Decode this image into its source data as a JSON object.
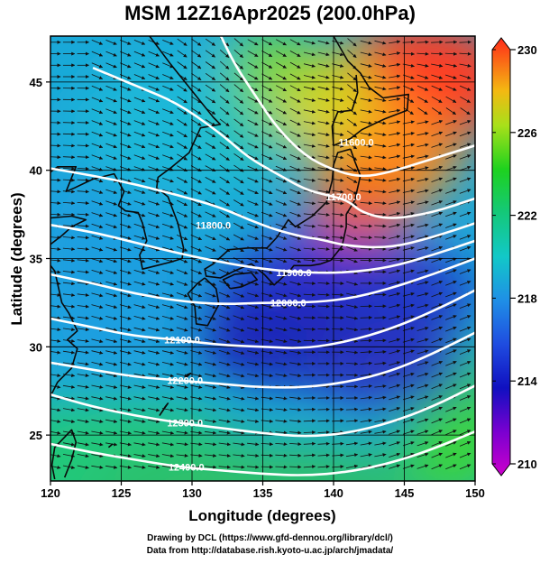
{
  "title": "MSM 12Z16Apr2025 (200.0hPa)",
  "xlabel": "Longitude (degrees)",
  "ylabel": "Latitude  (degrees)",
  "x_ticks": [
    "120",
    "125",
    "130",
    "135",
    "140",
    "145",
    "150"
  ],
  "y_ticks": [
    "25",
    "30",
    "35",
    "40",
    "45"
  ],
  "colorbar_ticks": [
    "230",
    "226",
    "222",
    "218",
    "214",
    "210"
  ],
  "credit": {
    "line1": "Drawing by DCL (https://www.gfd-dennou.org/library/dcl/)",
    "line2": "Data from http://database.rish.kyoto-u.ac.jp/arch/jmadata/"
  },
  "chart_data": {
    "type": "heatmap",
    "title": "MSM 12Z16Apr2025 (200.0hPa)",
    "xlabel": "Longitude (degrees)",
    "ylabel": "Latitude  (degrees)",
    "xlim": [
      120,
      150
    ],
    "ylim": [
      22.4,
      47.6
    ],
    "colorbar": {
      "min": 210,
      "max": 230,
      "ticks": [
        210,
        214,
        218,
        222,
        226,
        230
      ]
    },
    "contours": [
      {
        "label": "11600.0",
        "lon": [
          131.8,
          133,
          134.5,
          136,
          138,
          140,
          142,
          144,
          146,
          148,
          150
        ],
        "lat": [
          48,
          46,
          44.2,
          42.4,
          40.8,
          40,
          39.6,
          39.9,
          40.4,
          40.9,
          41.4
        ]
      },
      {
        "label": "11700.0",
        "lon": [
          123,
          126,
          129,
          132,
          134,
          136,
          138,
          139.5,
          141,
          142,
          144,
          147,
          150
        ],
        "lat": [
          45.8,
          44.8,
          43.8,
          42.1,
          40.7,
          39.8,
          38.9,
          38.6,
          38.3,
          37.6,
          37.2,
          37.6,
          38.4
        ]
      },
      {
        "label": "11800.0",
        "lon": [
          120,
          123,
          126,
          129,
          132,
          134,
          136,
          138,
          139,
          141,
          144,
          147,
          150
        ],
        "lat": [
          40.1,
          39.7,
          39.2,
          38.6,
          37.9,
          37.2,
          36.6,
          36.2,
          36.1,
          35.7,
          35.6,
          36.2,
          37
        ]
      },
      {
        "label": "11900.0",
        "lon": [
          120,
          123,
          126,
          129,
          132,
          135,
          138,
          141,
          144,
          147,
          150
        ],
        "lat": [
          36.9,
          36.5,
          35.9,
          35.3,
          34.8,
          34.4,
          34.2,
          34.2,
          34.5,
          35.2,
          36
        ]
      },
      {
        "label": "12000.0",
        "lon": [
          120,
          123,
          126,
          129,
          132,
          135,
          138,
          141,
          144,
          147,
          150
        ],
        "lat": [
          34.1,
          33.6,
          33,
          32.6,
          32.4,
          32.5,
          32.5,
          32.7,
          33.3,
          34.1,
          35
        ]
      },
      {
        "label": "12100.0",
        "lon": [
          120,
          123,
          126,
          129,
          132,
          135,
          138,
          141,
          144,
          147,
          150
        ],
        "lat": [
          31.6,
          31.1,
          30.6,
          30.4,
          30.1,
          30,
          29.9,
          30.3,
          31,
          32,
          33.2
        ]
      },
      {
        "label": "12200.0",
        "lon": [
          120,
          123,
          126,
          129,
          132,
          135,
          138,
          141,
          144,
          147,
          150
        ],
        "lat": [
          29.1,
          28.7,
          28.3,
          28.1,
          27.9,
          27.7,
          27.7,
          28,
          28.6,
          29.6,
          30.8
        ]
      },
      {
        "label": "12300.0",
        "lon": [
          120,
          123,
          126,
          129,
          132,
          135,
          138,
          141,
          144,
          147,
          150
        ],
        "lat": [
          27.3,
          26.6,
          26.1,
          25.7,
          25.4,
          25.1,
          24.9,
          25.1,
          25.7,
          26.6,
          27.8
        ]
      },
      {
        "label": "12400.0",
        "lon": [
          120,
          123,
          126,
          129,
          132,
          135,
          138,
          141,
          144,
          147,
          150
        ],
        "lat": [
          24.5,
          24,
          23.6,
          23.2,
          23,
          22.8,
          22.7,
          22.9,
          23.4,
          24.2,
          25.2
        ]
      }
    ],
    "contour_labels": [
      {
        "text": "11600.0",
        "lon": 141.6,
        "lat": 41.6
      },
      {
        "text": "11700.0",
        "lon": 140.7,
        "lat": 38.5
      },
      {
        "text": "11800.0",
        "lon": 131.5,
        "lat": 36.9
      },
      {
        "text": "11900.0",
        "lon": 137.2,
        "lat": 34.2
      },
      {
        "text": "12000.0",
        "lon": 136.8,
        "lat": 32.5
      },
      {
        "text": "12100.0",
        "lon": 129.3,
        "lat": 30.4
      },
      {
        "text": "12200.0",
        "lon": 129.5,
        "lat": 28.1
      },
      {
        "text": "12300.0",
        "lon": 129.5,
        "lat": 25.7
      },
      {
        "text": "12400.0",
        "lon": 129.6,
        "lat": 23.2
      }
    ]
  }
}
